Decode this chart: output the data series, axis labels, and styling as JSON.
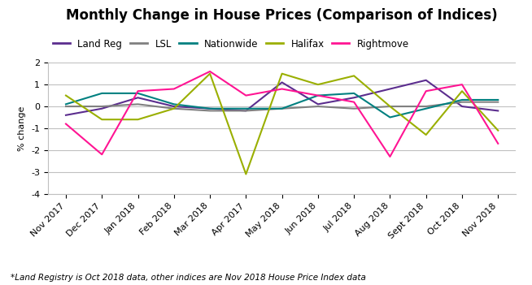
{
  "title": "Monthly Change in House Prices (Comparison of Indices)",
  "xlabel": "",
  "ylabel": "% change",
  "footnote": "*Land Registry is Oct 2018 data, other indices are Nov 2018 House Price Index data",
  "categories": [
    "Nov 2017",
    "Dec 2017",
    "Jan 2018",
    "Feb 2018",
    "Mar 2018",
    "Apr 2017",
    "May 2018",
    "Jun 2018",
    "Jul 2018",
    "Aug 2018",
    "Sept 2018",
    "Oct 2018",
    "Nov 2018"
  ],
  "ylim": [
    -4,
    2
  ],
  "yticks": [
    -4,
    -3,
    -2,
    -1,
    0,
    1,
    2
  ],
  "series": [
    {
      "label": "Land Reg",
      "color": "#5b2d8e",
      "values": [
        -0.4,
        -0.1,
        0.4,
        0.0,
        -0.1,
        -0.2,
        1.1,
        0.1,
        0.4,
        0.8,
        1.2,
        0.0,
        -0.2
      ]
    },
    {
      "label": "LSL",
      "color": "#808080",
      "values": [
        0.0,
        0.0,
        0.1,
        -0.1,
        -0.2,
        -0.2,
        -0.1,
        0.0,
        -0.1,
        0.0,
        0.0,
        0.2,
        0.2
      ]
    },
    {
      "label": "Nationwide",
      "color": "#008080",
      "values": [
        0.1,
        0.6,
        0.6,
        0.1,
        -0.1,
        -0.1,
        -0.1,
        0.5,
        0.6,
        -0.5,
        -0.1,
        0.3,
        0.3
      ]
    },
    {
      "label": "Halifax",
      "color": "#9aaf00",
      "values": [
        0.5,
        -0.6,
        -0.6,
        -0.1,
        1.5,
        -3.1,
        1.5,
        1.0,
        1.4,
        0.0,
        -1.3,
        0.7,
        -1.1
      ]
    },
    {
      "label": "Rightmove",
      "color": "#ff1493",
      "values": [
        -0.8,
        -2.2,
        0.7,
        0.8,
        1.6,
        0.5,
        0.8,
        0.5,
        0.2,
        -2.3,
        0.7,
        1.0,
        -1.7
      ]
    }
  ],
  "background_color": "#ffffff",
  "grid_color": "#c0c0c0",
  "title_fontsize": 12,
  "axis_fontsize": 8,
  "legend_fontsize": 8.5,
  "footnote_fontsize": 7.5
}
